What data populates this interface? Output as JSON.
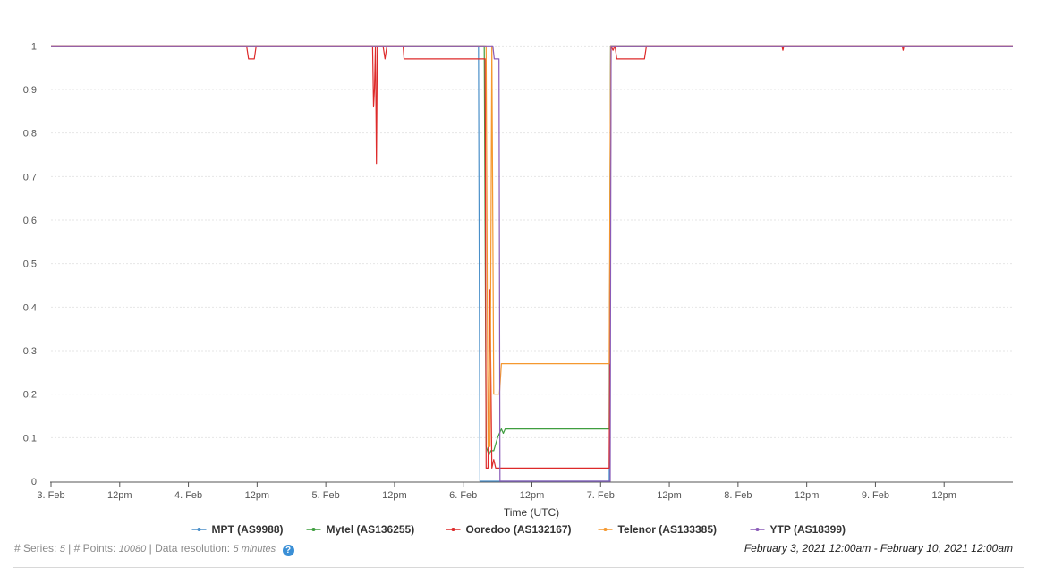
{
  "chart_data": {
    "type": "line",
    "xlabel": "Time (UTC)",
    "ylabel": "",
    "ylim": [
      0,
      1.05
    ],
    "xlim": [
      "2021-02-03T00:00",
      "2021-02-10T00:00"
    ],
    "grid": true,
    "legend_position": "bottom-center",
    "y_ticks": [
      {
        "value": 0,
        "label": "0"
      },
      {
        "value": 0.1,
        "label": "0.1"
      },
      {
        "value": 0.2,
        "label": "0.2"
      },
      {
        "value": 0.3,
        "label": "0.3"
      },
      {
        "value": 0.4,
        "label": "0.4"
      },
      {
        "value": 0.5,
        "label": "0.5"
      },
      {
        "value": 0.6,
        "label": "0.6"
      },
      {
        "value": 0.7,
        "label": "0.7"
      },
      {
        "value": 0.8,
        "label": "0.8"
      },
      {
        "value": 0.9,
        "label": "0.9"
      },
      {
        "value": 1,
        "label": "1"
      }
    ],
    "x_ticks": [
      {
        "value": "2021-02-03T00:00",
        "label": "3. Feb"
      },
      {
        "value": "2021-02-03T12:00",
        "label": "12pm"
      },
      {
        "value": "2021-02-04T00:00",
        "label": "4. Feb"
      },
      {
        "value": "2021-02-04T12:00",
        "label": "12pm"
      },
      {
        "value": "2021-02-05T00:00",
        "label": "5. Feb"
      },
      {
        "value": "2021-02-05T12:00",
        "label": "12pm"
      },
      {
        "value": "2021-02-06T00:00",
        "label": "6. Feb"
      },
      {
        "value": "2021-02-06T12:00",
        "label": "12pm"
      },
      {
        "value": "2021-02-07T00:00",
        "label": "7. Feb"
      },
      {
        "value": "2021-02-07T12:00",
        "label": "12pm"
      },
      {
        "value": "2021-02-08T00:00",
        "label": "8. Feb"
      },
      {
        "value": "2021-02-08T12:00",
        "label": "12pm"
      },
      {
        "value": "2021-02-09T00:00",
        "label": "9. Feb"
      },
      {
        "value": "2021-02-09T12:00",
        "label": "12pm"
      }
    ],
    "series": [
      {
        "name": "MPT (AS9988)",
        "color": "#4a8fc9",
        "points": [
          [
            "2021-02-03T00:00",
            1
          ],
          [
            "2021-02-06T02:40",
            1
          ],
          [
            "2021-02-06T02:55",
            0
          ],
          [
            "2021-02-07T01:30",
            0
          ],
          [
            "2021-02-07T01:45",
            1
          ],
          [
            "2021-02-10T00:00",
            1
          ]
        ]
      },
      {
        "name": "Mytel (AS136255)",
        "color": "#3f9e3f",
        "points": [
          [
            "2021-02-03T00:00",
            1
          ],
          [
            "2021-02-06T03:40",
            1
          ],
          [
            "2021-02-06T04:00",
            0.08
          ],
          [
            "2021-02-06T04:30",
            0.06
          ],
          [
            "2021-02-06T04:50",
            0.07
          ],
          [
            "2021-02-06T05:20",
            0.07
          ],
          [
            "2021-02-06T06:00",
            0.1
          ],
          [
            "2021-02-06T06:20",
            0.11
          ],
          [
            "2021-02-06T06:40",
            0.12
          ],
          [
            "2021-02-06T07:00",
            0.11
          ],
          [
            "2021-02-06T07:20",
            0.12
          ],
          [
            "2021-02-07T01:30",
            0.12
          ],
          [
            "2021-02-07T01:45",
            1
          ],
          [
            "2021-02-10T00:00",
            1
          ]
        ]
      },
      {
        "name": "Ooredoo (AS132167)",
        "color": "#dd2a2a",
        "points": [
          [
            "2021-02-03T00:00",
            1
          ],
          [
            "2021-02-04T10:10",
            1
          ],
          [
            "2021-02-04T10:30",
            0.97
          ],
          [
            "2021-02-04T11:30",
            0.97
          ],
          [
            "2021-02-04T11:50",
            1
          ],
          [
            "2021-02-05T08:10",
            1
          ],
          [
            "2021-02-05T08:20",
            0.86
          ],
          [
            "2021-02-05T08:30",
            0.9
          ],
          [
            "2021-02-05T08:40",
            1
          ],
          [
            "2021-02-05T08:50",
            0.73
          ],
          [
            "2021-02-05T09:00",
            1
          ],
          [
            "2021-02-05T10:00",
            1
          ],
          [
            "2021-02-05T10:20",
            0.97
          ],
          [
            "2021-02-05T10:40",
            1
          ],
          [
            "2021-02-05T13:30",
            1
          ],
          [
            "2021-02-05T13:40",
            0.97
          ],
          [
            "2021-02-06T03:50",
            0.97
          ],
          [
            "2021-02-06T04:00",
            0.03
          ],
          [
            "2021-02-06T04:20",
            0.03
          ],
          [
            "2021-02-06T04:40",
            0.44
          ],
          [
            "2021-02-06T05:00",
            0.03
          ],
          [
            "2021-02-06T05:20",
            0.05
          ],
          [
            "2021-02-06T05:40",
            0.03
          ],
          [
            "2021-02-07T01:30",
            0.03
          ],
          [
            "2021-02-07T01:50",
            1
          ],
          [
            "2021-02-07T02:10",
            0.99
          ],
          [
            "2021-02-07T02:30",
            1
          ],
          [
            "2021-02-07T02:50",
            0.97
          ],
          [
            "2021-02-07T07:40",
            0.97
          ],
          [
            "2021-02-07T08:00",
            1
          ],
          [
            "2021-02-08T07:40",
            1
          ],
          [
            "2021-02-08T07:50",
            0.99
          ],
          [
            "2021-02-08T08:00",
            1
          ],
          [
            "2021-02-09T04:40",
            1
          ],
          [
            "2021-02-09T04:50",
            0.99
          ],
          [
            "2021-02-09T05:00",
            1
          ],
          [
            "2021-02-10T00:00",
            1
          ]
        ]
      },
      {
        "name": "Telenor (AS133385)",
        "color": "#f5982f",
        "points": [
          [
            "2021-02-03T00:00",
            1
          ],
          [
            "2021-02-06T04:00",
            1
          ],
          [
            "2021-02-06T04:20",
            0.08
          ],
          [
            "2021-02-06T04:40",
            0.08
          ],
          [
            "2021-02-06T05:00",
            1
          ],
          [
            "2021-02-06T05:20",
            0.2
          ],
          [
            "2021-02-06T06:20",
            0.2
          ],
          [
            "2021-02-06T06:40",
            0.27
          ],
          [
            "2021-02-07T01:30",
            0.27
          ],
          [
            "2021-02-07T01:45",
            1
          ],
          [
            "2021-02-10T00:00",
            1
          ]
        ]
      },
      {
        "name": "YTP (AS18399)",
        "color": "#8a5bb8",
        "points": [
          [
            "2021-02-03T00:00",
            1
          ],
          [
            "2021-02-06T05:10",
            1
          ],
          [
            "2021-02-06T05:25",
            0.97
          ],
          [
            "2021-02-06T06:15",
            0.97
          ],
          [
            "2021-02-06T06:25",
            0
          ],
          [
            "2021-02-07T01:40",
            0
          ],
          [
            "2021-02-07T01:50",
            1
          ],
          [
            "2021-02-10T00:00",
            1
          ]
        ]
      }
    ]
  },
  "footer": {
    "series_label": "# Series:",
    "series_count": "5",
    "points_label": "# Points:",
    "points_count": "10080",
    "resolution_label": "Data resolution:",
    "resolution_value": "5 minutes",
    "help_glyph": "?",
    "date_range": "February 3, 2021 12:00am - February 10, 2021 12:00am"
  }
}
